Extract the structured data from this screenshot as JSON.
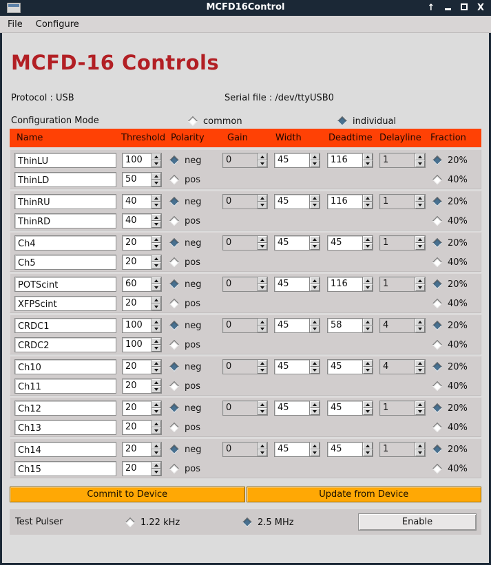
{
  "window": {
    "title": "MCFD16Control"
  },
  "menu": {
    "file": "File",
    "configure": "Configure"
  },
  "heading": "MCFD-16 Controls",
  "info": {
    "protocol": "Protocol : USB",
    "serial": "Serial file : /dev/ttyUSB0"
  },
  "config_mode": {
    "label": "Configuration Mode",
    "common": "common",
    "individual": "individual",
    "selected": "individual"
  },
  "table": {
    "headers": [
      "Name",
      "Threshold",
      "Polarity",
      "Gain",
      "Width",
      "Deadtime",
      "Delayline",
      "Fraction"
    ],
    "polarity_options": [
      "neg",
      "pos"
    ],
    "fraction_options": [
      "20%",
      "40%"
    ],
    "groups": [
      {
        "ch_a": {
          "name": "ThinLU",
          "threshold": "100"
        },
        "ch_b": {
          "name": "ThinLD",
          "threshold": "50"
        },
        "polarity": "neg",
        "gain": "0",
        "width": "45",
        "deadtime": "116",
        "delayline": "1",
        "fraction": "20%"
      },
      {
        "ch_a": {
          "name": "ThinRU",
          "threshold": "40"
        },
        "ch_b": {
          "name": "ThinRD",
          "threshold": "40"
        },
        "polarity": "neg",
        "gain": "0",
        "width": "45",
        "deadtime": "116",
        "delayline": "1",
        "fraction": "20%"
      },
      {
        "ch_a": {
          "name": "Ch4",
          "threshold": "20"
        },
        "ch_b": {
          "name": "Ch5",
          "threshold": "20"
        },
        "polarity": "neg",
        "gain": "0",
        "width": "45",
        "deadtime": "45",
        "delayline": "1",
        "fraction": "20%"
      },
      {
        "ch_a": {
          "name": "POTScint",
          "threshold": "60"
        },
        "ch_b": {
          "name": "XFPScint",
          "threshold": "20"
        },
        "polarity": "neg",
        "gain": "0",
        "width": "45",
        "deadtime": "116",
        "delayline": "1",
        "fraction": "20%"
      },
      {
        "ch_a": {
          "name": "CRDC1",
          "threshold": "100"
        },
        "ch_b": {
          "name": "CRDC2",
          "threshold": "100"
        },
        "polarity": "neg",
        "gain": "0",
        "width": "45",
        "deadtime": "58",
        "delayline": "4",
        "fraction": "20%"
      },
      {
        "ch_a": {
          "name": "Ch10",
          "threshold": "20"
        },
        "ch_b": {
          "name": "Ch11",
          "threshold": "20"
        },
        "polarity": "neg",
        "gain": "0",
        "width": "45",
        "deadtime": "45",
        "delayline": "4",
        "fraction": "20%"
      },
      {
        "ch_a": {
          "name": "Ch12",
          "threshold": "20"
        },
        "ch_b": {
          "name": "Ch13",
          "threshold": "20"
        },
        "polarity": "neg",
        "gain": "0",
        "width": "45",
        "deadtime": "45",
        "delayline": "1",
        "fraction": "20%"
      },
      {
        "ch_a": {
          "name": "Ch14",
          "threshold": "20"
        },
        "ch_b": {
          "name": "Ch15",
          "threshold": "20"
        },
        "polarity": "neg",
        "gain": "0",
        "width": "45",
        "deadtime": "45",
        "delayline": "1",
        "fraction": "20%"
      }
    ]
  },
  "actions": {
    "commit": "Commit to Device",
    "update": "Update from Device"
  },
  "test_pulser": {
    "label": "Test Pulser",
    "freq_options": [
      "1.22 kHz",
      "2.5 MHz"
    ],
    "selected": "2.5 MHz",
    "enable_button": "Enable"
  },
  "colors": {
    "titlebar": "#1b2836",
    "header_orange": "#ff4105",
    "action_amber": "#ffa805",
    "heading_red": "#b21f24",
    "radio_selected": "#48708f"
  }
}
